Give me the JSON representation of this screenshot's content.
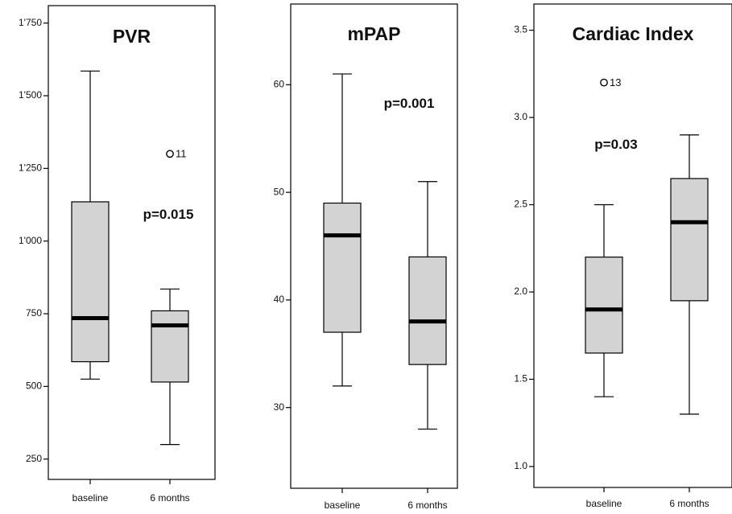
{
  "chart_data": [
    {
      "type": "box",
      "title": "PVR",
      "annotation": "p=0.015",
      "ylim": [
        180,
        1810
      ],
      "yticks": [
        250,
        500,
        750,
        1000,
        1250,
        1500,
        1750
      ],
      "ytick_labels": [
        "250",
        "500",
        "750",
        "1'000",
        "1'250",
        "1'500",
        "1'750"
      ],
      "categories": [
        "baseline",
        "6 months"
      ],
      "boxes": [
        {
          "category": "baseline",
          "whisker_low": 525,
          "q1": 585,
          "median": 735,
          "q3": 1135,
          "whisker_high": 1585,
          "outliers": []
        },
        {
          "category": "6 months",
          "whisker_low": 300,
          "q1": 515,
          "median": 710,
          "q3": 760,
          "whisker_high": 835,
          "outliers": [
            {
              "value": 1300,
              "label": "11"
            }
          ]
        }
      ]
    },
    {
      "type": "box",
      "title": "mPAP",
      "annotation": "p=0.001",
      "ylim": [
        22.5,
        67.5
      ],
      "yticks": [
        30,
        40,
        50,
        60
      ],
      "ytick_labels": [
        "30",
        "40",
        "50",
        "60"
      ],
      "categories": [
        "baseline",
        "6 months"
      ],
      "boxes": [
        {
          "category": "baseline",
          "whisker_low": 32,
          "q1": 37,
          "median": 46,
          "q3": 49,
          "whisker_high": 61,
          "outliers": []
        },
        {
          "category": "6 months",
          "whisker_low": 28,
          "q1": 34,
          "median": 38,
          "q3": 44,
          "whisker_high": 51,
          "outliers": []
        }
      ]
    },
    {
      "type": "box",
      "title": "Cardiac Index",
      "annotation": "p=0.03",
      "ylim": [
        0.88,
        3.65
      ],
      "yticks": [
        1.0,
        1.5,
        2.0,
        2.5,
        3.0,
        3.5
      ],
      "ytick_labels": [
        "1.0",
        "1.5",
        "2.0",
        "2.5",
        "3.0",
        "3.5"
      ],
      "categories": [
        "baseline",
        "6 months"
      ],
      "boxes": [
        {
          "category": "baseline",
          "whisker_low": 1.4,
          "q1": 1.65,
          "median": 1.9,
          "q3": 2.2,
          "whisker_high": 2.5,
          "outliers": [
            {
              "value": 3.2,
              "label": "13"
            }
          ]
        },
        {
          "category": "6 months",
          "whisker_low": 1.3,
          "q1": 1.95,
          "median": 2.4,
          "q3": 2.65,
          "whisker_high": 2.9,
          "outliers": []
        }
      ]
    }
  ]
}
